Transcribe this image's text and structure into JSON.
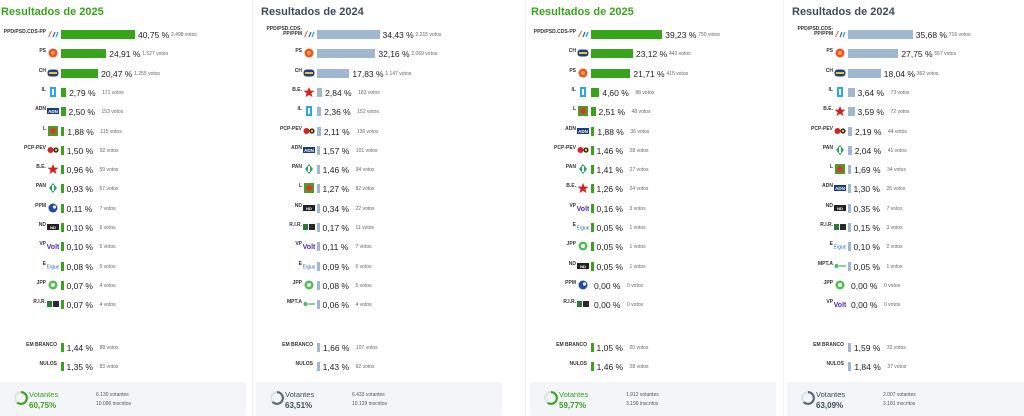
{
  "colors": {
    "green": "#37a41b",
    "blue": "#9fb7d0",
    "voteGreen": "#37a41b",
    "voteGray": "#8a9aa8"
  },
  "panels": [
    {
      "title": "Resultados de 2025",
      "title_color": "#37a41b",
      "bar_color": "#37a41b",
      "rows": [
        {
          "name": "PPD/PSD.CDS-PP",
          "logo": "ad",
          "pct": "40,75 %",
          "value": 40.75,
          "votes": "2.498 votos"
        },
        {
          "name": "PS",
          "logo": "ps",
          "pct": "24,91 %",
          "value": 24.91,
          "votes": "1.527 votos"
        },
        {
          "name": "CH",
          "logo": "ch",
          "pct": "20,47 %",
          "value": 20.47,
          "votes": "1.255 votos"
        },
        {
          "name": "IL",
          "logo": "il",
          "pct": "2,79 %",
          "value": 2.79,
          "votes": "171 votos"
        },
        {
          "name": "ADN",
          "logo": "adn",
          "pct": "2,50 %",
          "value": 2.5,
          "votes": "153 votos"
        },
        {
          "name": "L",
          "logo": "l",
          "pct": "1,88 %",
          "value": 1.88,
          "votes": "115 votos"
        },
        {
          "name": "PCP-PEV",
          "logo": "pcp",
          "pct": "1,50 %",
          "value": 1.5,
          "votes": "92 votos"
        },
        {
          "name": "B.E.",
          "logo": "be",
          "pct": "0,96 %",
          "value": 0.96,
          "votes": "59 votos"
        },
        {
          "name": "PAN",
          "logo": "pan",
          "pct": "0,93 %",
          "value": 0.93,
          "votes": "57 votos"
        },
        {
          "name": "PPM",
          "logo": "ppm",
          "pct": "0,11 %",
          "value": 0.11,
          "votes": "7 votos"
        },
        {
          "name": "ND",
          "logo": "nd",
          "pct": "0,10 %",
          "value": 0.1,
          "votes": "6 votos"
        },
        {
          "name": "VP",
          "logo": "vp",
          "pct": "0,10 %",
          "value": 0.1,
          "votes": "6 votos"
        },
        {
          "name": "E",
          "logo": "e",
          "pct": "0,08 %",
          "value": 0.08,
          "votes": "5 votos"
        },
        {
          "name": "JPP",
          "logo": "jpp",
          "pct": "0,07 %",
          "value": 0.07,
          "votes": "4 votos"
        },
        {
          "name": "R.I.R.",
          "logo": "rir",
          "pct": "0,07 %",
          "value": 0.07,
          "votes": "4 votos"
        }
      ],
      "extras": [
        {
          "name": "EM BRANCO",
          "pct": "1,44 %",
          "value": 1.44,
          "votes": "88 votos"
        },
        {
          "name": "NULOS",
          "pct": "1,35 %",
          "value": 1.35,
          "votes": "83 votos"
        }
      ],
      "footer": {
        "label": "Votantes",
        "pct": "60,75%",
        "votantes": "6.130 votantes",
        "inscritos": "10.090 inscritos",
        "progress": 0.6075
      }
    },
    {
      "title": "Resultados de 2024",
      "title_color": "#3e4c5a",
      "bar_color": "#9fb7d0",
      "rows": [
        {
          "name": "PPD/PSD.CDS-PP/PPM",
          "logo": "ad",
          "pct": "34,43 %",
          "value": 34.43,
          "votes": "2.215 votos"
        },
        {
          "name": "PS",
          "logo": "ps",
          "pct": "32,16 %",
          "value": 32.16,
          "votes": "2.069 votos"
        },
        {
          "name": "CH",
          "logo": "ch",
          "pct": "17,83 %",
          "value": 17.83,
          "votes": "1.147 votos"
        },
        {
          "name": "B.E.",
          "logo": "be",
          "pct": "2,84 %",
          "value": 2.84,
          "votes": "183 votos"
        },
        {
          "name": "IL",
          "logo": "il",
          "pct": "2,36 %",
          "value": 2.36,
          "votes": "152 votos"
        },
        {
          "name": "PCP-PEV",
          "logo": "pcp",
          "pct": "2,11 %",
          "value": 2.11,
          "votes": "136 votos"
        },
        {
          "name": "ADN",
          "logo": "adn",
          "pct": "1,57 %",
          "value": 1.57,
          "votes": "101 votos"
        },
        {
          "name": "PAN",
          "logo": "pan",
          "pct": "1,46 %",
          "value": 1.46,
          "votes": "94 votos"
        },
        {
          "name": "L",
          "logo": "l",
          "pct": "1,27 %",
          "value": 1.27,
          "votes": "82 votos"
        },
        {
          "name": "ND",
          "logo": "nd",
          "pct": "0,34 %",
          "value": 0.34,
          "votes": "22 votos"
        },
        {
          "name": "R.I.R.",
          "logo": "rir",
          "pct": "0,17 %",
          "value": 0.17,
          "votes": "11 votos"
        },
        {
          "name": "VP",
          "logo": "vp",
          "pct": "0,11 %",
          "value": 0.11,
          "votes": "7 votos"
        },
        {
          "name": "E",
          "logo": "e",
          "pct": "0,09 %",
          "value": 0.09,
          "votes": "6 votos"
        },
        {
          "name": "JPP",
          "logo": "jpp",
          "pct": "0,08 %",
          "value": 0.08,
          "votes": "5 votos"
        },
        {
          "name": "MPT.A",
          "logo": "mpt",
          "pct": "0,06 %",
          "value": 0.06,
          "votes": "4 votos"
        }
      ],
      "extras": [
        {
          "name": "EM BRANCO",
          "pct": "1,66 %",
          "value": 1.66,
          "votes": "107 votos"
        },
        {
          "name": "NULOS",
          "pct": "1,43 %",
          "value": 1.43,
          "votes": "92 votos"
        }
      ],
      "footer": {
        "label": "Votantes",
        "pct": "63,51%",
        "votantes": "6.433 votantes",
        "inscritos": "10.129 inscritos",
        "progress": 0.6351
      }
    },
    {
      "title": "Resultados de 2025",
      "title_color": "#37a41b",
      "bar_color": "#37a41b",
      "rows": [
        {
          "name": "PPD/PSD.CDS-PP",
          "logo": "ad",
          "pct": "39,23 %",
          "value": 39.23,
          "votes": "750 votos"
        },
        {
          "name": "CH",
          "logo": "ch",
          "pct": "23,12 %",
          "value": 23.12,
          "votes": "442 votos"
        },
        {
          "name": "PS",
          "logo": "ps",
          "pct": "21,71 %",
          "value": 21.71,
          "votes": "415 votos"
        },
        {
          "name": "IL",
          "logo": "il",
          "pct": "4,60 %",
          "value": 4.6,
          "votes": "88 votos"
        },
        {
          "name": "L",
          "logo": "l",
          "pct": "2,51 %",
          "value": 2.51,
          "votes": "48 votos"
        },
        {
          "name": "ADN",
          "logo": "adn",
          "pct": "1,88 %",
          "value": 1.88,
          "votes": "36 votos"
        },
        {
          "name": "PCP-PEV",
          "logo": "pcp",
          "pct": "1,46 %",
          "value": 1.46,
          "votes": "28 votos"
        },
        {
          "name": "PAN",
          "logo": "pan",
          "pct": "1,41 %",
          "value": 1.41,
          "votes": "27 votos"
        },
        {
          "name": "B.E.",
          "logo": "be",
          "pct": "1,26 %",
          "value": 1.26,
          "votes": "24 votos"
        },
        {
          "name": "VP",
          "logo": "vp",
          "pct": "0,16 %",
          "value": 0.16,
          "votes": "3 votos"
        },
        {
          "name": "E",
          "logo": "e",
          "pct": "0,05 %",
          "value": 0.05,
          "votes": "1 votos"
        },
        {
          "name": "JPP",
          "logo": "jpp",
          "pct": "0,05 %",
          "value": 0.05,
          "votes": "1 votos"
        },
        {
          "name": "ND",
          "logo": "nd",
          "pct": "0,05 %",
          "value": 0.05,
          "votes": "1 votos"
        },
        {
          "name": "PPM",
          "logo": "ppm",
          "pct": "0,00 %",
          "value": 0.0,
          "votes": "0 votos"
        },
        {
          "name": "R.I.R.",
          "logo": "rir",
          "pct": "0,00 %",
          "value": 0.0,
          "votes": "0 votos"
        }
      ],
      "extras": [
        {
          "name": "EM BRANCO",
          "pct": "1,05 %",
          "value": 1.05,
          "votes": "20 votos"
        },
        {
          "name": "NULOS",
          "pct": "1,46 %",
          "value": 1.46,
          "votes": "28 votos"
        }
      ],
      "footer": {
        "label": "Votantes",
        "pct": "59,77%",
        "votantes": "1.912 votantes",
        "inscritos": "3.199 inscritos",
        "progress": 0.5977
      }
    },
    {
      "title": "Resultados de 2024",
      "title_color": "#3e4c5a",
      "bar_color": "#9fb7d0",
      "rows": [
        {
          "name": "PPD/PSD.CDS-PP/PPM",
          "logo": "ad",
          "pct": "35,68 %",
          "value": 35.68,
          "votes": "716 votos"
        },
        {
          "name": "PS",
          "logo": "ps",
          "pct": "27,75 %",
          "value": 27.75,
          "votes": "557 votos"
        },
        {
          "name": "CH",
          "logo": "ch",
          "pct": "18,04 %",
          "value": 18.04,
          "votes": "362 votos"
        },
        {
          "name": "IL",
          "logo": "il",
          "pct": "3,64 %",
          "value": 3.64,
          "votes": "73 votos"
        },
        {
          "name": "B.E.",
          "logo": "be",
          "pct": "3,59 %",
          "value": 3.59,
          "votes": "72 votos"
        },
        {
          "name": "PCP-PEV",
          "logo": "pcp",
          "pct": "2,19 %",
          "value": 2.19,
          "votes": "44 votos"
        },
        {
          "name": "PAN",
          "logo": "pan",
          "pct": "2,04 %",
          "value": 2.04,
          "votes": "41 votos"
        },
        {
          "name": "L",
          "logo": "l",
          "pct": "1,69 %",
          "value": 1.69,
          "votes": "34 votos"
        },
        {
          "name": "ADN",
          "logo": "adn",
          "pct": "1,30 %",
          "value": 1.3,
          "votes": "26 votos"
        },
        {
          "name": "ND",
          "logo": "nd",
          "pct": "0,35 %",
          "value": 0.35,
          "votes": "7 votos"
        },
        {
          "name": "R.I.R.",
          "logo": "rir",
          "pct": "0,15 %",
          "value": 0.15,
          "votes": "3 votos"
        },
        {
          "name": "E",
          "logo": "e",
          "pct": "0,10 %",
          "value": 0.1,
          "votes": "2 votos"
        },
        {
          "name": "MPT.A",
          "logo": "mpt",
          "pct": "0,05 %",
          "value": 0.05,
          "votes": "1 votos"
        },
        {
          "name": "JPP",
          "logo": "jpp",
          "pct": "0,00 %",
          "value": 0.0,
          "votes": "0 votos"
        },
        {
          "name": "VP",
          "logo": "vp",
          "pct": "0,00 %",
          "value": 0.0,
          "votes": "0 votos"
        }
      ],
      "extras": [
        {
          "name": "EM BRANCO",
          "pct": "1,59 %",
          "value": 1.59,
          "votes": "32 votos"
        },
        {
          "name": "NULOS",
          "pct": "1,84 %",
          "value": 1.84,
          "votes": "37 votos"
        }
      ],
      "footer": {
        "label": "Votantes",
        "pct": "63,09%",
        "votantes": "2.007 votantes",
        "inscritos": "3.181 inscritos",
        "progress": 0.6309
      }
    }
  ]
}
